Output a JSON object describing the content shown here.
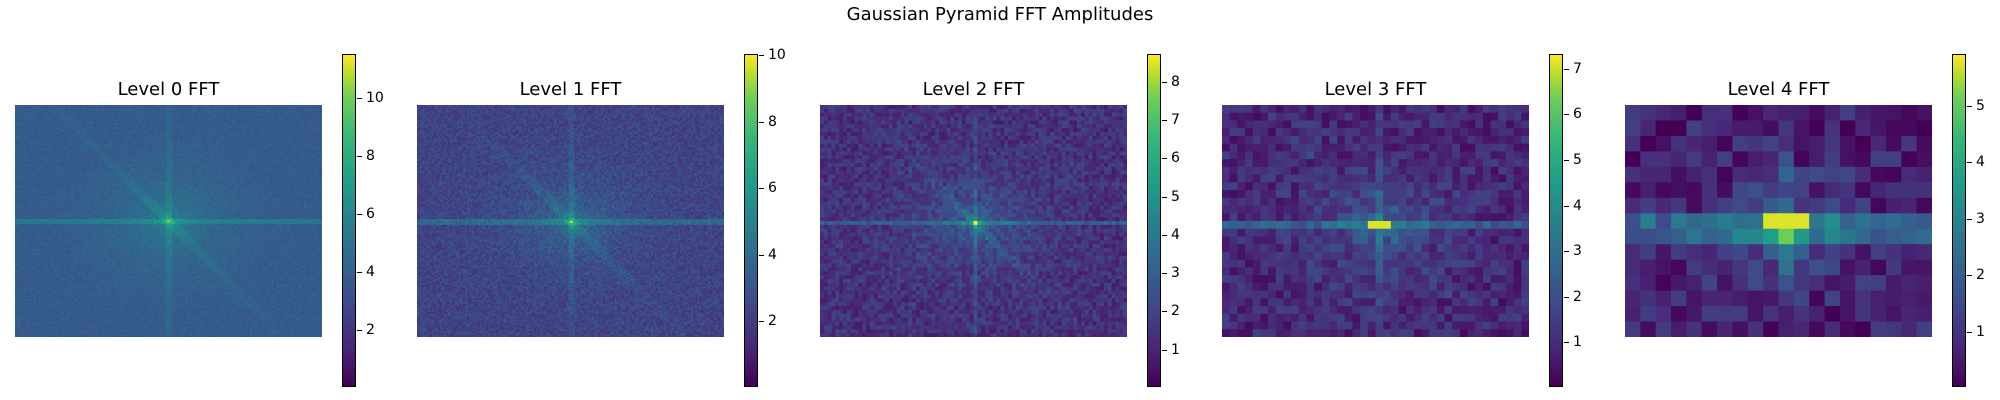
{
  "chart_data": {
    "type": "heatmap",
    "suptitle": "Gaussian Pyramid FFT Amplitudes",
    "colormap": "viridis",
    "colormap_colors": [
      "#440154",
      "#482878",
      "#3e4a89",
      "#31688e",
      "#26828e",
      "#1f9e89",
      "#35b779",
      "#6ece58",
      "#b5de2b",
      "#fde725"
    ],
    "panels": [
      {
        "title": "Level 0 FFT",
        "resolution": [
          240,
          320
        ],
        "vmin": 0.0,
        "vmax": 11.5,
        "ticks": [
          2,
          4,
          6,
          8,
          10
        ],
        "background_level": 3.3,
        "peak_value": 11.5
      },
      {
        "title": "Level 1 FFT",
        "resolution": [
          120,
          160
        ],
        "vmin": 0.0,
        "vmax": 10.0,
        "ticks": [
          2,
          4,
          6,
          8,
          10
        ],
        "background_level": 2.0,
        "peak_value": 10.0
      },
      {
        "title": "Level 2 FFT",
        "resolution": [
          60,
          80
        ],
        "vmin": 0.0,
        "vmax": 8.7,
        "ticks": [
          1,
          2,
          3,
          4,
          5,
          6,
          7,
          8
        ],
        "background_level": 1.2,
        "peak_value": 8.7
      },
      {
        "title": "Level 3 FFT",
        "resolution": [
          30,
          40
        ],
        "vmin": 0.0,
        "vmax": 7.3,
        "ticks": [
          1,
          2,
          3,
          4,
          5,
          6,
          7
        ],
        "background_level": 0.8,
        "peak_value": 7.3
      },
      {
        "title": "Level 4 FFT",
        "resolution": [
          15,
          20
        ],
        "vmin": 0.0,
        "vmax": 5.9,
        "ticks": [
          1,
          2,
          3,
          4,
          5
        ],
        "background_level": 0.5,
        "peak_value": 5.9
      }
    ]
  }
}
